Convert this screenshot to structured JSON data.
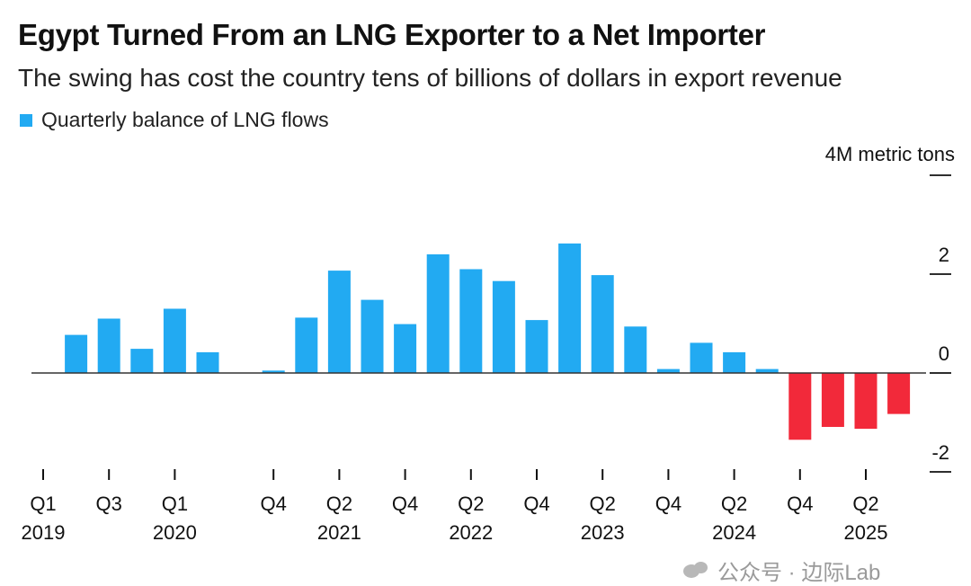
{
  "title": "Egypt Turned From an LNG Exporter to a Net Importer",
  "subtitle": "The swing has cost the country tens of billions of dollars in export revenue",
  "watermark": "公众号 · 边际Lab",
  "colors": {
    "positive": "#22aaf2",
    "negative": "#f2293a",
    "baseline": "#333333"
  },
  "chart_data": {
    "type": "bar",
    "legend": [
      "Quarterly balance of LNG flows"
    ],
    "unit_label": "4M metric tons",
    "ylim": [
      -2.5,
      4
    ],
    "y_ticks": [
      4,
      2,
      0,
      -2
    ],
    "y_tick_labels": [
      "",
      "2",
      "0",
      "-2"
    ],
    "categories": [
      "Q1 2019",
      "Q2 2019",
      "Q3 2019",
      "Q4 2019",
      "Q1 2020",
      "Q2 2020",
      "Q3 2020",
      "Q4 2020",
      "Q1 2021",
      "Q2 2021",
      "Q3 2021",
      "Q4 2021",
      "Q1 2022",
      "Q2 2022",
      "Q3 2022",
      "Q4 2022",
      "Q1 2023",
      "Q2 2023",
      "Q3 2023",
      "Q4 2023",
      "Q1 2024",
      "Q2 2024",
      "Q3 2024",
      "Q4 2024",
      "Q1 2025",
      "Q2 2025",
      "Q3 2025"
    ],
    "values": [
      0,
      0.77,
      1.1,
      0.49,
      1.3,
      0.42,
      0,
      0.05,
      1.12,
      2.07,
      1.48,
      0.99,
      2.4,
      2.1,
      1.86,
      1.07,
      2.62,
      1.98,
      0.94,
      0.08,
      0.61,
      0.42,
      0.08,
      -1.35,
      -1.09,
      -1.13,
      -0.83
    ],
    "x_ticks": [
      {
        "index": 0,
        "top": "Q1",
        "bottom": "2019"
      },
      {
        "index": 2,
        "top": "Q3",
        "bottom": ""
      },
      {
        "index": 4,
        "top": "Q1",
        "bottom": "2020"
      },
      {
        "index": 7,
        "top": "Q4",
        "bottom": ""
      },
      {
        "index": 9,
        "top": "Q2",
        "bottom": "2021"
      },
      {
        "index": 11,
        "top": "Q4",
        "bottom": ""
      },
      {
        "index": 13,
        "top": "Q2",
        "bottom": "2022"
      },
      {
        "index": 15,
        "top": "Q4",
        "bottom": ""
      },
      {
        "index": 17,
        "top": "Q2",
        "bottom": "2023"
      },
      {
        "index": 19,
        "top": "Q4",
        "bottom": ""
      },
      {
        "index": 21,
        "top": "Q2",
        "bottom": "2024"
      },
      {
        "index": 23,
        "top": "Q4",
        "bottom": ""
      },
      {
        "index": 25,
        "top": "Q2",
        "bottom": "2025"
      }
    ],
    "grid": false
  }
}
